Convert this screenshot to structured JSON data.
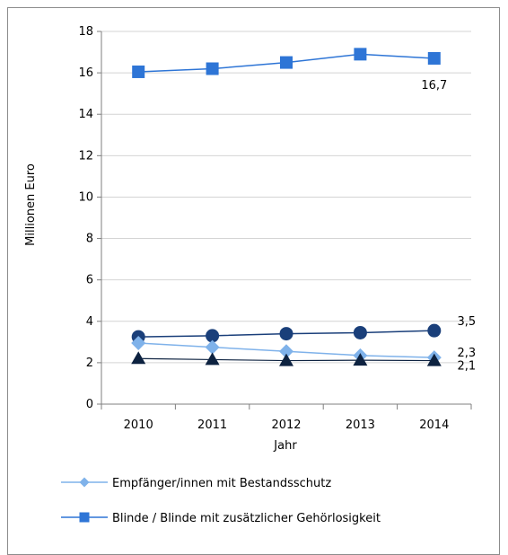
{
  "chart_data": {
    "type": "line",
    "title": "",
    "xlabel": "Jahr",
    "ylabel": "Millionen Euro",
    "categories": [
      "2010",
      "2011",
      "2012",
      "2013",
      "2014"
    ],
    "ylim": [
      0,
      18
    ],
    "yticks": [
      "0",
      "2",
      "4",
      "6",
      "8",
      "10",
      "12",
      "14",
      "16",
      "18"
    ],
    "grid": "horizontal",
    "legend_position": "bottom",
    "series": [
      {
        "name": "Blinde / Blinde mit zusätzlicher Gehörlosigkeit",
        "values": [
          16.05,
          16.2,
          16.5,
          16.9,
          16.7
        ],
        "color": "#2e75d6",
        "marker": "square",
        "end_label": "16,7"
      },
      {
        "name": "",
        "values": [
          3.25,
          3.3,
          3.4,
          3.45,
          3.55
        ],
        "color": "#1a3f7a",
        "marker": "circle",
        "end_label": "3,5"
      },
      {
        "name": "Empfänger/innen mit Bestandsschutz",
        "values": [
          2.95,
          2.75,
          2.55,
          2.35,
          2.25
        ],
        "color": "#7fb2ea",
        "marker": "diamond",
        "end_label": "2,3"
      },
      {
        "name": "",
        "values": [
          2.2,
          2.15,
          2.1,
          2.12,
          2.1
        ],
        "color": "#0d2240",
        "marker": "triangle",
        "end_label": "2,1"
      }
    ]
  },
  "legend": [
    {
      "label": "Empfänger/innen mit Bestandsschutz",
      "color": "#7fb2ea",
      "marker": "diamond"
    },
    {
      "label": "Blinde / Blinde mit zusätzlicher Gehörlosigkeit",
      "color": "#2e75d6",
      "marker": "square"
    }
  ]
}
